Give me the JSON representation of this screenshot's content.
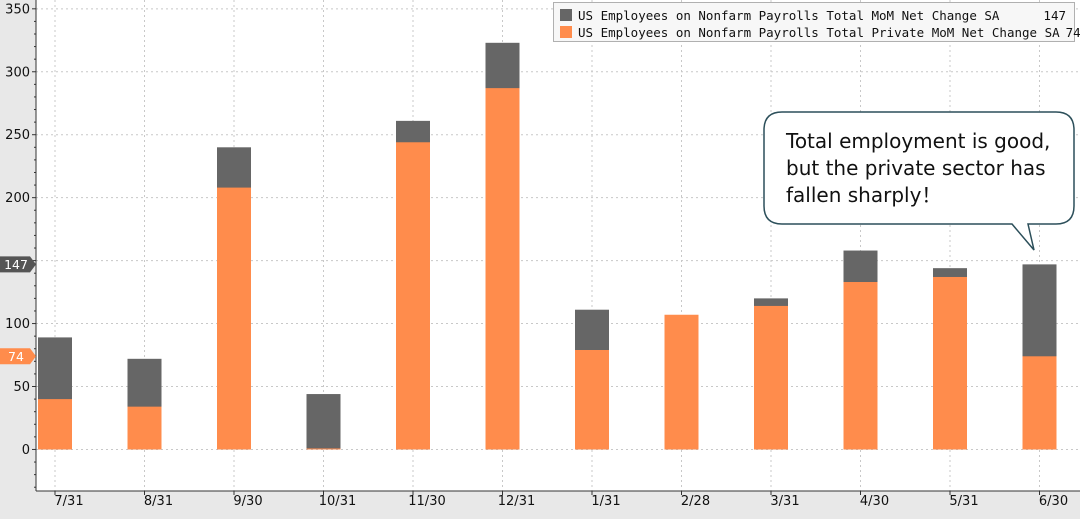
{
  "chart_data": {
    "type": "bar",
    "stacked_overlay": true,
    "categories": [
      "7/31",
      "8/31",
      "9/30",
      "10/31",
      "11/30",
      "12/31",
      "1/31",
      "2/28",
      "3/31",
      "4/30",
      "5/31",
      "6/30"
    ],
    "series": [
      {
        "name": "US Employees on Nonfarm Payrolls Total MoM Net Change SA",
        "last_value": "147",
        "color": "#666666",
        "values": [
          89,
          72,
          240,
          44,
          261,
          323,
          111,
          105,
          120,
          158,
          144,
          147
        ]
      },
      {
        "name": "US Employees on Nonfarm Payrolls Total Private MoM Net Change SA",
        "last_value": "74",
        "color": "#ff8c4c",
        "values": [
          40,
          34,
          208,
          0,
          244,
          287,
          79,
          107,
          114,
          133,
          137,
          74
        ]
      }
    ],
    "y_ticks": [
      0,
      50,
      100,
      150,
      200,
      250,
      300,
      350
    ],
    "y_tick_labels": [
      "0",
      "50",
      "100",
      "",
      "200",
      "250",
      "300",
      "350"
    ],
    "ylim": [
      -33,
      357
    ],
    "grid": true,
    "legend_position": "top-right",
    "value_markers": [
      {
        "label": "147",
        "value": 147,
        "color": "#555555"
      },
      {
        "label": "74",
        "value": 74,
        "color": "#ff8c4c"
      }
    ],
    "annotation": {
      "lines": [
        "Total employment is good,",
        "but the private sector has",
        "fallen sharply！"
      ]
    }
  }
}
